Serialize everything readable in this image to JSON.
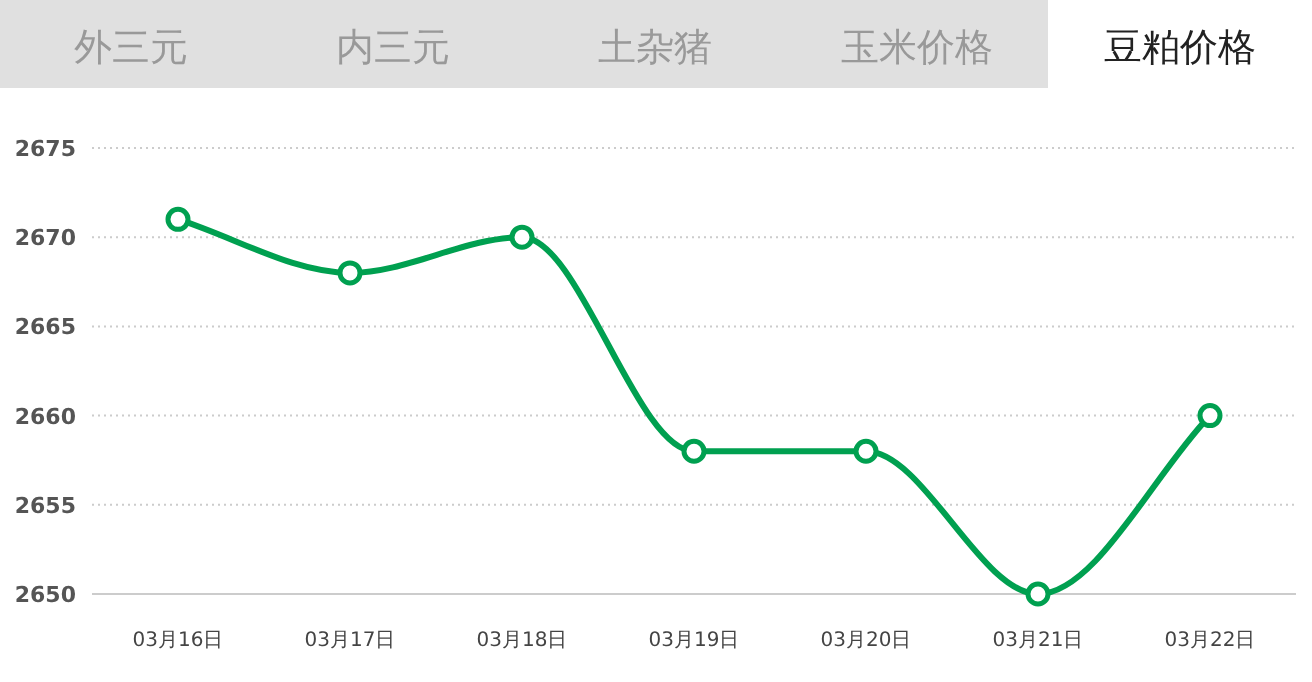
{
  "chart_data": {
    "type": "line",
    "title": "豆粕价格",
    "annotations": [
      "外三元",
      "内三元",
      "土杂猪",
      "玉米价格"
    ],
    "categories": [
      "03月16日",
      "03月17日",
      "03月18日",
      "03月19日",
      "03月20日",
      "03月21日",
      "03月22日"
    ],
    "series": [
      {
        "color": "#00a050",
        "values": [
          2671,
          2668,
          2670,
          2658,
          2658,
          2650,
          2660
        ]
      }
    ],
    "ylim": [
      2650,
      2675
    ],
    "yticks": [
      2650,
      2655,
      2660,
      2665,
      2670,
      2675
    ],
    "grid": "y",
    "marker": "circle",
    "line_style": "solid"
  }
}
